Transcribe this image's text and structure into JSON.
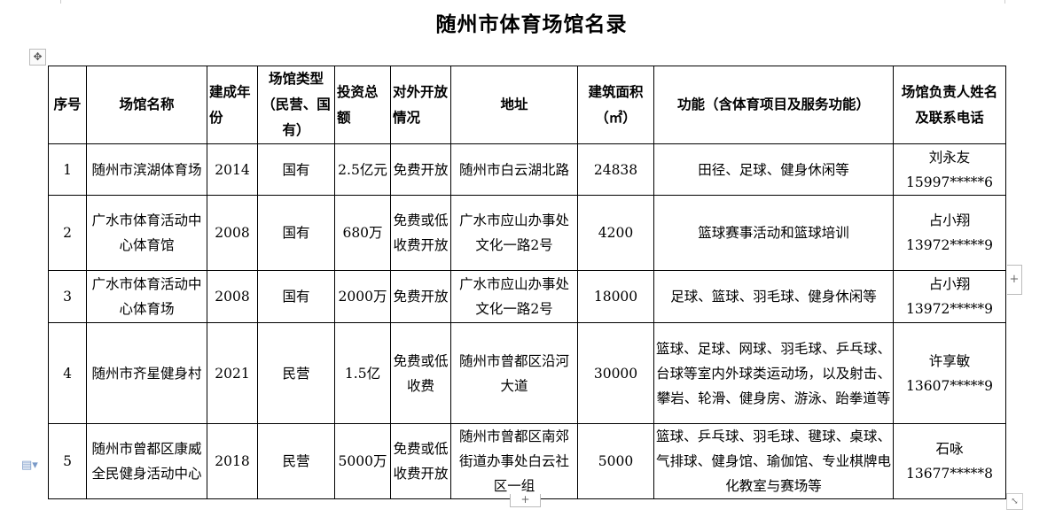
{
  "document": {
    "title": "随州市体育场馆名录"
  },
  "table": {
    "headers": [
      "序号",
      "场馆名称",
      "建成年份",
      "场馆类型（民营、国有）",
      "投资总额",
      "对外开放情况",
      "地址",
      "建筑面积（㎡）",
      "功能（含体育项目及服务功能）",
      "场馆负责人姓名及联系电话"
    ],
    "rows": [
      [
        "1",
        "随州市滨湖体育场",
        "2014",
        "国有",
        "2.5亿元",
        "免费开放",
        "随州市白云湖北路",
        "24838",
        "田径、足球、健身休闲等",
        "刘永友\n15997*****6"
      ],
      [
        "2",
        "广水市体育活动中心体育馆",
        "2008",
        "国有",
        "680万",
        "免费或低收费开放",
        "广水市应山办事处文化一路2号",
        "4200",
        "篮球赛事活动和篮球培训",
        "占小翔\n13972*****9"
      ],
      [
        "3",
        "广水市体育活动中心体育场",
        "2008",
        "国有",
        "2000万",
        "免费开放",
        "广水市应山办事处文化一路2号",
        "18000",
        "足球、篮球、羽毛球、健身休闲等",
        "占小翔\n13972*****9"
      ],
      [
        "4",
        "随州市齐星健身村",
        "2021",
        "民营",
        "1.5亿",
        "免费或低收费",
        "随州市曾都区沿河大道",
        "30000",
        "篮球、足球、网球、羽毛球、乒乓球、台球等室内外球类运动场，以及射击、攀岩、轮滑、健身房、游泳、跆拳道等",
        "许享敏\n13607*****9"
      ],
      [
        "5",
        "随州市曾都区康威全民健身活动中心",
        "2018",
        "民营",
        "5000万",
        "免费或低收费开放",
        "随州市曾都区南郊街道办事处白云社区一组",
        "5000",
        "篮球、乒乓球、羽毛球、毽球、桌球、气排球、健身馆、瑜伽馆、专业棋牌电化教室与赛场等",
        "石咏\n13677*****8"
      ]
    ]
  },
  "controls": {
    "move_icon": "move-icon",
    "add_row": "+",
    "add_column": "+",
    "resize_icon": "resize-icon",
    "doc_icon": "document-icon"
  }
}
